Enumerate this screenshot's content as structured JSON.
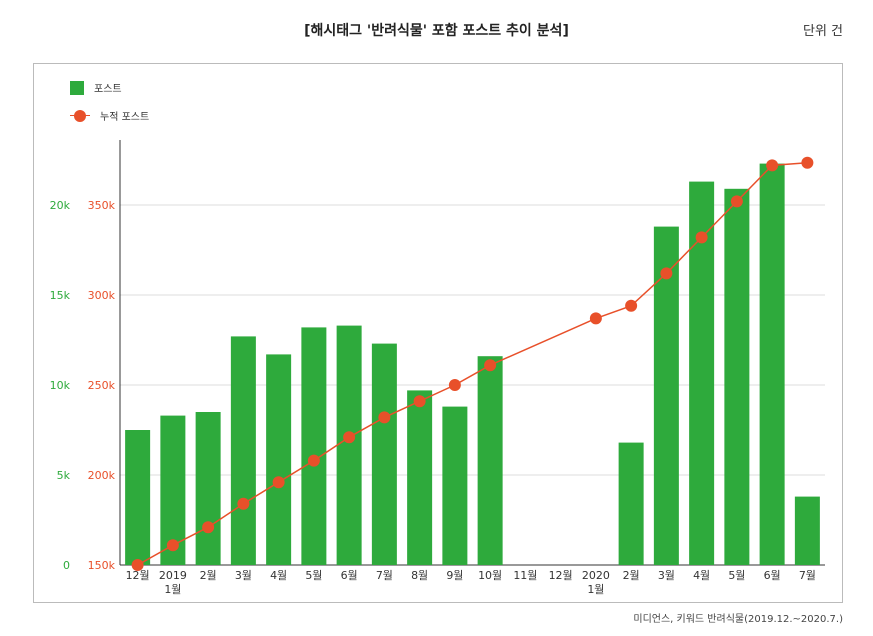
{
  "header": {
    "title": "[해시태그 '반려식물' 포함 포스트 추이 분석]",
    "unit": "단위 건"
  },
  "footer": {
    "source": "미디언스, 키워드 반려식물(2019.12.~2020.7.)"
  },
  "colors": {
    "bar": "#2eaa3c",
    "line": "#e8502a",
    "left_axis": "#2eaa3c",
    "right_axis": "#e8502a",
    "grid": "#dddddd"
  },
  "chart_data": {
    "type": "bar",
    "categories": [
      "12월",
      "2019\n1월",
      "2월",
      "3월",
      "4월",
      "5월",
      "6월",
      "7월",
      "8월",
      "9월",
      "10월",
      "11월",
      "12월",
      "2020\n1월",
      "2월",
      "3월",
      "4월",
      "5월",
      "6월",
      "7월"
    ],
    "series": [
      {
        "name": "포스트",
        "type": "bar",
        "axis": "left",
        "values": [
          7500,
          8300,
          8500,
          12700,
          11700,
          13200,
          13300,
          12300,
          9700,
          8800,
          11600,
          null,
          null,
          null,
          6800,
          18800,
          21300,
          20900,
          22300,
          3800
        ]
      },
      {
        "name": "누적 포스트",
        "type": "line",
        "axis": "right",
        "values": [
          150000,
          161000,
          171000,
          184000,
          196000,
          208000,
          221000,
          232000,
          241000,
          250000,
          261000,
          null,
          null,
          287000,
          294000,
          312000,
          332000,
          352000,
          372000,
          373500
        ]
      }
    ],
    "y_left": {
      "ticks": [
        0,
        5000,
        10000,
        15000,
        20000
      ],
      "tick_labels": [
        "0",
        "5k",
        "10k",
        "15k",
        "20k"
      ],
      "ylim": [
        0,
        25000
      ]
    },
    "y_right": {
      "ticks": [
        150000,
        200000,
        250000,
        300000,
        350000
      ],
      "tick_labels": [
        "150k",
        "200k",
        "250k",
        "300k",
        "350k"
      ],
      "ylim": [
        150000,
        400000
      ]
    },
    "grid": true,
    "legend": "top-left"
  }
}
